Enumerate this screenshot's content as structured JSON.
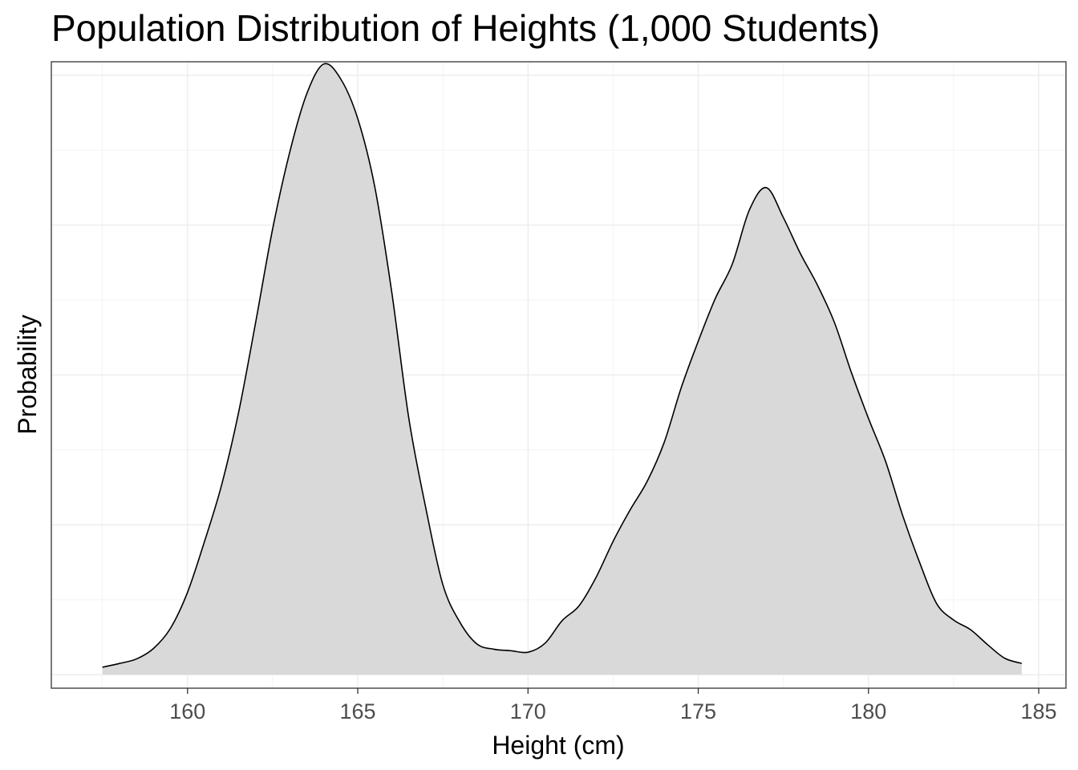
{
  "chart_data": {
    "type": "area",
    "title": "Population Distribution of Heights (1,000 Students)",
    "xlabel": "Height (cm)",
    "ylabel": "Probability",
    "xlim": [
      156,
      185.8
    ],
    "ylim": [
      -0.0018,
      0.0818
    ],
    "x_ticks": [
      160,
      165,
      170,
      175,
      180,
      185
    ],
    "y_tick_labels_shown": false,
    "grid": true,
    "fill_color": "#d9d9d9",
    "line_color": "#000000",
    "x": [
      157.5,
      158.0,
      158.5,
      159.0,
      159.5,
      160.0,
      160.5,
      161.0,
      161.5,
      162.0,
      162.5,
      163.0,
      163.5,
      164.0,
      164.5,
      165.0,
      165.5,
      166.0,
      166.5,
      167.0,
      167.5,
      168.0,
      168.5,
      169.0,
      169.5,
      170.0,
      170.5,
      171.0,
      171.5,
      172.0,
      172.5,
      173.0,
      173.5,
      174.0,
      174.5,
      175.0,
      175.5,
      176.0,
      176.5,
      177.0,
      177.5,
      178.0,
      178.5,
      179.0,
      179.5,
      180.0,
      180.5,
      181.0,
      181.5,
      182.0,
      182.5,
      183.0,
      183.5,
      184.0,
      184.5
    ],
    "y": [
      0.001,
      0.0015,
      0.0021,
      0.0035,
      0.0062,
      0.011,
      0.0178,
      0.0253,
      0.035,
      0.047,
      0.0595,
      0.0697,
      0.0775,
      0.0815,
      0.0795,
      0.0742,
      0.0651,
      0.051,
      0.0342,
      0.0222,
      0.012,
      0.007,
      0.0041,
      0.0034,
      0.0032,
      0.003,
      0.0042,
      0.0072,
      0.0092,
      0.013,
      0.0178,
      0.022,
      0.0258,
      0.031,
      0.0383,
      0.0445,
      0.0502,
      0.0548,
      0.062,
      0.065,
      0.061,
      0.0562,
      0.052,
      0.047,
      0.0403,
      0.0342,
      0.0285,
      0.0213,
      0.015,
      0.0095,
      0.0073,
      0.006,
      0.004,
      0.0022,
      0.0015
    ]
  }
}
